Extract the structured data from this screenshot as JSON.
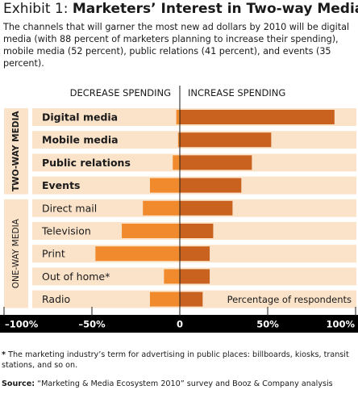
{
  "header": {
    "title_lead": "Exhibit 1: ",
    "title_bold": "Marketers’ Interest in Two-way Media",
    "subtitle": "The channels that will garner the most new ad dollars by 2010 will be digital media (with 88 percent of marketers planning to increase their spending), mobile media (52 percent), public relations (41 percent), and events (35 percent)."
  },
  "footer": {
    "note_marker": "*",
    "note": "The marketing industry’s term for advertising in public places: billboards, kiosks, transit stations, and so on.",
    "source_label": "Source:",
    "source_text": "“Marketing & Media Ecosystem 2010” survey and Booz & Company analysis"
  },
  "colors": {
    "increase": "#c8621e",
    "decrease": "#f08a2c",
    "row_band": "#fbe3ca",
    "group_band": "#fbe3ca",
    "axis_bar": "#000000"
  },
  "chart_data": {
    "type": "bar",
    "orientation": "horizontal-diverging",
    "header_left": "DECREASE SPENDING",
    "header_right": "INCREASE SPENDING",
    "annotation": "Percentage of respondents",
    "xlim": [
      -100,
      100
    ],
    "x_ticks": [
      -100,
      -50,
      0,
      50,
      100
    ],
    "x_tick_labels": [
      "–100%",
      "–50%",
      "0",
      "50%",
      "100%"
    ],
    "groups": [
      {
        "label": "TWO-WAY MEDIA",
        "bold": true
      },
      {
        "label": "ONE-WAY MEDIA",
        "bold": false
      }
    ],
    "categories": [
      {
        "label": "Digital media",
        "group": 0,
        "decrease": -2,
        "increase": 88
      },
      {
        "label": "Mobile media",
        "group": 0,
        "decrease": -1,
        "increase": 52
      },
      {
        "label": "Public relations",
        "group": 0,
        "decrease": -4,
        "increase": 41
      },
      {
        "label": "Events",
        "group": 0,
        "decrease": -17,
        "increase": 35
      },
      {
        "label": "Direct mail",
        "group": 1,
        "decrease": -21,
        "increase": 30
      },
      {
        "label": "Television",
        "group": 1,
        "decrease": -33,
        "increase": 19
      },
      {
        "label": "Print",
        "group": 1,
        "decrease": -48,
        "increase": 17
      },
      {
        "label": "Out of home*",
        "group": 1,
        "decrease": -9,
        "increase": 17
      },
      {
        "label": "Radio",
        "group": 1,
        "decrease": -17,
        "increase": 13
      }
    ]
  }
}
